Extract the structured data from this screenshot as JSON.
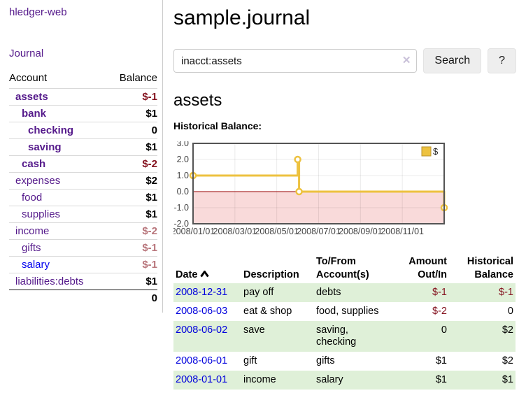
{
  "app": {
    "title": "hledger-web",
    "nav_journal": "Journal"
  },
  "colors": {
    "link_visited": "#551a8b",
    "link_unvisited": "#0000ee",
    "negative_strong": "#84121f",
    "negative_muted": "#b8757b",
    "row_stripe_green": "#dff0d8",
    "chart_line": "#edc240",
    "chart_negative_region": "#f9dada",
    "chart_zero_line": "#990000"
  },
  "sidebar": {
    "col_account": "Account",
    "col_balance": "Balance",
    "rows": [
      {
        "account": "assets",
        "level": 1,
        "emphasized": true,
        "balance": "$-1",
        "balance_style": "neg"
      },
      {
        "account": "bank",
        "level": 2,
        "emphasized": true,
        "balance": "$1",
        "balance_style": "pos"
      },
      {
        "account": "checking",
        "level": 3,
        "emphasized": true,
        "balance": "0",
        "balance_style": "pos"
      },
      {
        "account": "saving",
        "level": 3,
        "emphasized": true,
        "balance": "$1",
        "balance_style": "pos"
      },
      {
        "account": "cash",
        "level": 2,
        "emphasized": true,
        "balance": "$-2",
        "balance_style": "neg"
      },
      {
        "account": "expenses",
        "level": 1,
        "emphasized": false,
        "balance": "$2",
        "balance_style": "pos"
      },
      {
        "account": "food",
        "level": 2,
        "emphasized": false,
        "balance": "$1",
        "balance_style": "pos"
      },
      {
        "account": "supplies",
        "level": 2,
        "emphasized": false,
        "balance": "$1",
        "balance_style": "pos"
      },
      {
        "account": "income",
        "level": 1,
        "emphasized": false,
        "balance": "$-2",
        "balance_style": "neg-muted"
      },
      {
        "account": "gifts",
        "level": 2,
        "emphasized": false,
        "balance": "$-1",
        "balance_style": "neg-muted"
      },
      {
        "account": "salary",
        "level": 2,
        "emphasized": false,
        "balance": "$-1",
        "balance_style": "neg-muted",
        "unvisited": true
      },
      {
        "account": "liabilities:debts",
        "level": 1,
        "emphasized": false,
        "balance": "$1",
        "balance_style": "pos"
      }
    ],
    "total": "0"
  },
  "header": {
    "title": "sample.journal"
  },
  "search": {
    "value": "inacct:assets",
    "clear_icon": "✕",
    "button_label": "Search",
    "help_label": "?"
  },
  "account_page": {
    "heading": "assets",
    "chart_label": "Historical Balance:"
  },
  "chart_data": {
    "type": "line",
    "style": "step-after",
    "title": "Historical Balance",
    "series": [
      {
        "name": "$",
        "color": "#edc240",
        "points": [
          [
            "2008-01-01",
            1
          ],
          [
            "2008-06-01",
            2
          ],
          [
            "2008-06-03",
            0
          ],
          [
            "2008-12-31",
            -1
          ]
        ]
      }
    ],
    "x_ticks": [
      "2008/01/01",
      "2008/03/01",
      "2008/05/01",
      "2008/07/01",
      "2008/09/01",
      "2008/11/01"
    ],
    "y_ticks": [
      3.0,
      2.0,
      1.0,
      0.0,
      -1.0,
      -2.0
    ],
    "ylim": [
      -2,
      3
    ],
    "xlim": [
      "2008-01-01",
      "2008-12-31"
    ],
    "grid": true,
    "legend_position": "top-right",
    "negative_region_shaded": true
  },
  "register": {
    "columns": [
      "Date",
      "Description",
      "To/From Account(s)",
      "Amount Out/In",
      "Historical Balance"
    ],
    "rows": [
      {
        "date": "2008-12-31",
        "description": "pay off",
        "accounts": "debts",
        "amount": "$-1",
        "amount_neg": true,
        "balance": "$-1",
        "balance_neg": true,
        "shaded": true
      },
      {
        "date": "2008-06-03",
        "description": "eat & shop",
        "accounts": "food, supplies",
        "amount": "$-2",
        "amount_neg": true,
        "balance": "0",
        "balance_neg": false,
        "shaded": false
      },
      {
        "date": "2008-06-02",
        "description": "save",
        "accounts": "saving, checking",
        "amount": "0",
        "amount_neg": false,
        "balance": "$2",
        "balance_neg": false,
        "shaded": true
      },
      {
        "date": "2008-06-01",
        "description": "gift",
        "accounts": "gifts",
        "amount": "$1",
        "amount_neg": false,
        "balance": "$2",
        "balance_neg": false,
        "shaded": false
      },
      {
        "date": "2008-01-01",
        "description": "income",
        "accounts": "salary",
        "amount": "$1",
        "amount_neg": false,
        "balance": "$1",
        "balance_neg": false,
        "shaded": true
      }
    ]
  }
}
